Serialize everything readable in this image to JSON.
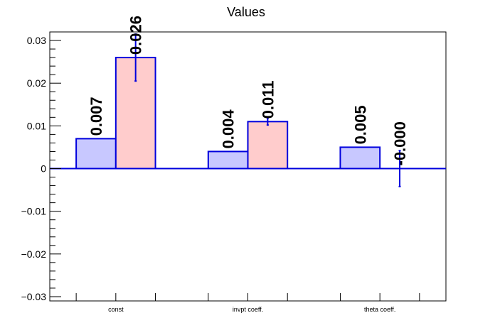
{
  "chart_data": {
    "type": "bar",
    "title": "Values",
    "categories": [
      "const",
      "invpt coeff.",
      "theta coeff."
    ],
    "series": [
      {
        "values": [
          0.007,
          0.004,
          0.005
        ],
        "errors": [
          0,
          0,
          0
        ],
        "labels": [
          "0.007",
          "0.004",
          "0.005"
        ]
      },
      {
        "values": [
          0.026,
          0.011,
          0.0
        ],
        "errors": [
          0.0055,
          0.0008,
          0.0042
        ],
        "labels": [
          "0.026",
          "0.011",
          "-0.000"
        ]
      }
    ],
    "ylim": [
      -0.031,
      0.032
    ],
    "yticks": [
      -0.03,
      -0.02,
      -0.01,
      0,
      0.01,
      0.02,
      0.03
    ],
    "ytick_labels": [
      "−0.03",
      "−0.02",
      "−0.01",
      "0",
      "0.01",
      "0.02",
      "0.03"
    ],
    "xlabel": "",
    "ylabel": "",
    "grid": false,
    "colors": {
      "series_fill": [
        "#c8c8ff",
        "#ffcccc"
      ],
      "bar_stroke": "#0000dd",
      "axis": "#000000"
    }
  }
}
